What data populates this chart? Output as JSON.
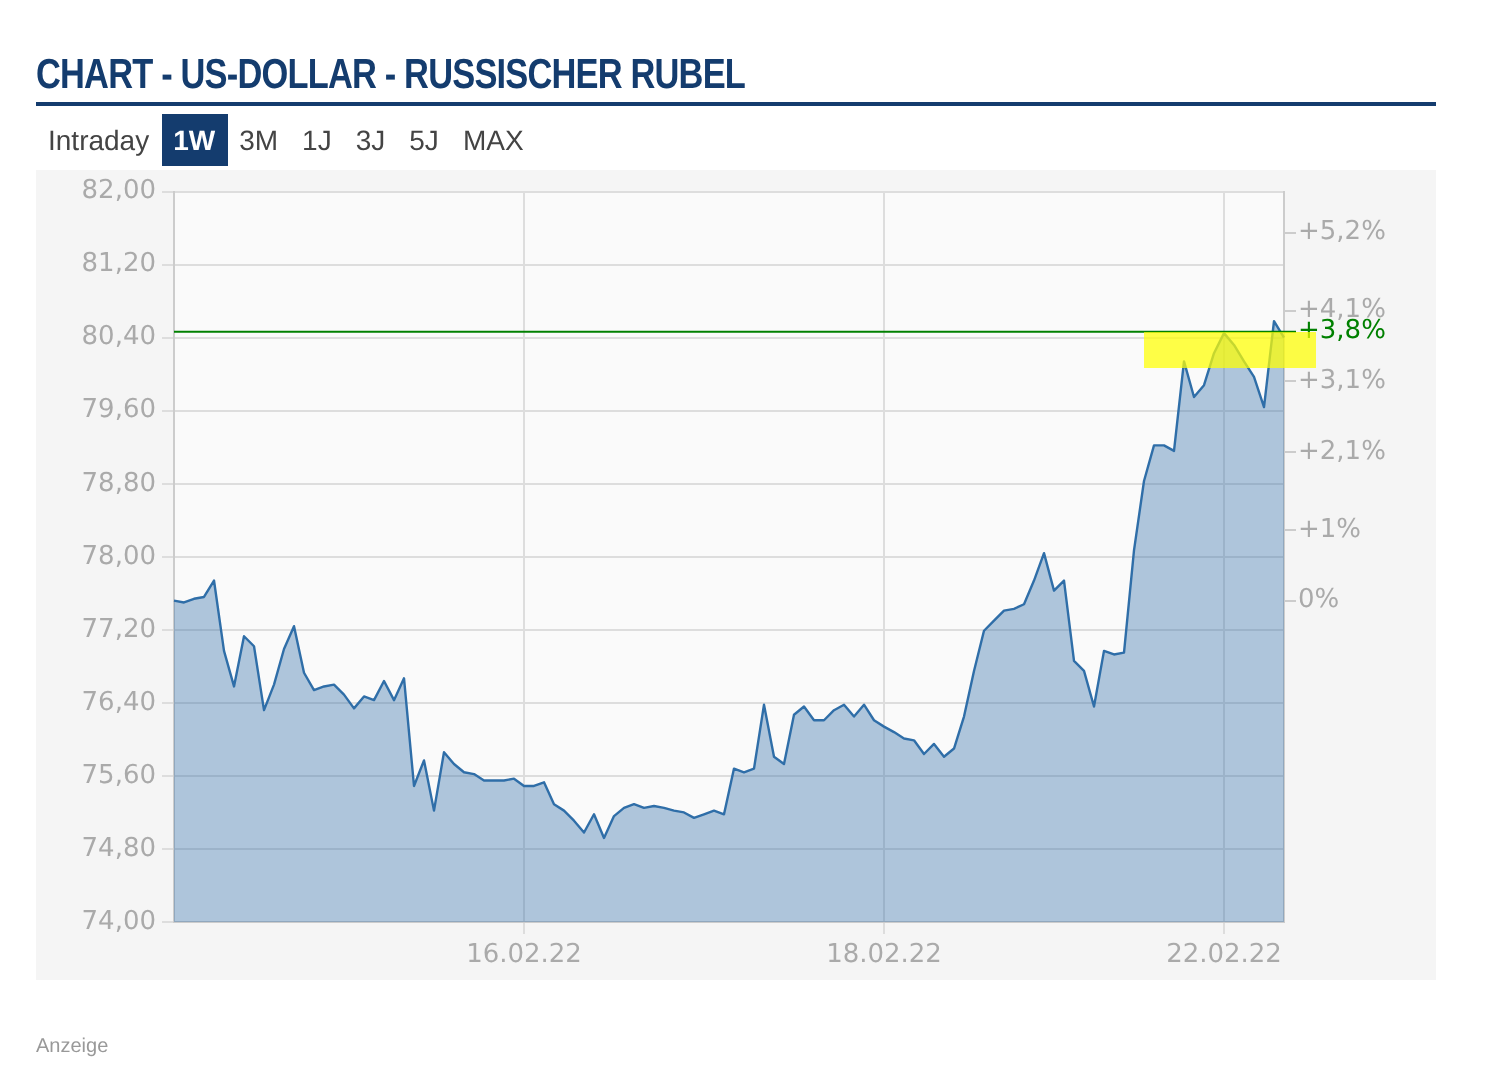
{
  "chart_data": {
    "type": "area",
    "title": "CHART - US-DOLLAR - RUSSISCHER RUBEL",
    "categories": [
      null,
      null,
      null,
      null,
      null,
      null,
      null,
      null,
      null,
      null,
      null,
      null,
      null,
      null,
      null,
      null,
      null,
      null,
      null,
      null,
      null,
      null,
      null,
      null,
      null,
      null,
      null,
      null,
      null,
      null,
      null,
      null,
      null,
      null,
      null,
      "16.02.22",
      null,
      null,
      null,
      null,
      null,
      null,
      null,
      null,
      null,
      null,
      null,
      null,
      null,
      null,
      null,
      null,
      null,
      null,
      null,
      null,
      null,
      null,
      null,
      null,
      null,
      null,
      null,
      null,
      null,
      null,
      null,
      null,
      null,
      null,
      null,
      "18.02.22",
      null,
      null,
      null,
      null,
      null,
      null,
      null,
      null,
      null,
      null,
      null,
      null,
      null,
      null,
      null,
      null,
      null,
      null,
      null,
      null,
      null,
      null,
      null,
      null,
      null,
      null,
      null,
      null,
      null,
      null,
      null,
      null,
      null,
      "22.02.22",
      null,
      null,
      null,
      null,
      null,
      null
    ],
    "series": [
      {
        "color": "#2f6ea8",
        "values": [
          77.52,
          77.5,
          77.54,
          77.56,
          77.74,
          76.97,
          76.58,
          77.13,
          77.02,
          76.32,
          76.6,
          76.99,
          77.24,
          76.73,
          76.54,
          76.58,
          76.6,
          76.49,
          76.34,
          76.47,
          76.43,
          76.64,
          76.43,
          76.67,
          75.49,
          75.77,
          75.22,
          75.86,
          75.73,
          75.64,
          75.62,
          75.55,
          75.55,
          75.55,
          75.57,
          75.49,
          75.49,
          75.53,
          75.29,
          75.22,
          75.11,
          74.98,
          75.18,
          74.92,
          75.16,
          75.25,
          75.29,
          75.25,
          75.27,
          75.25,
          75.22,
          75.2,
          75.14,
          75.18,
          75.22,
          75.18,
          75.68,
          75.64,
          75.68,
          76.38,
          75.81,
          75.73,
          76.27,
          76.36,
          76.21,
          76.21,
          76.32,
          76.38,
          76.25,
          76.38,
          76.21,
          76.14,
          76.08,
          76.01,
          75.99,
          75.84,
          75.95,
          75.81,
          75.9,
          76.25,
          76.75,
          77.19,
          77.3,
          77.41,
          77.43,
          77.48,
          77.74,
          78.04,
          77.63,
          77.74,
          76.86,
          76.75,
          76.36,
          76.97,
          76.93,
          76.95,
          78.07,
          78.83,
          79.22,
          79.22,
          79.16,
          80.14,
          79.75,
          79.88,
          80.23,
          80.45,
          80.32,
          80.14,
          79.97,
          79.64,
          80.58,
          80.4
        ]
      }
    ],
    "ylim": [
      74,
      82
    ],
    "yticks": [
      {
        "value": 74,
        "label": "74,00"
      },
      {
        "value": 74.8,
        "label": "74,80"
      },
      {
        "value": 75.6,
        "label": "75,60"
      },
      {
        "value": 76.4,
        "label": "76,40"
      },
      {
        "value": 77.2,
        "label": "77,20"
      },
      {
        "value": 78,
        "label": "78,00"
      },
      {
        "value": 78.8,
        "label": "78,80"
      },
      {
        "value": 79.6,
        "label": "79,60"
      },
      {
        "value": 80.4,
        "label": "80,40"
      },
      {
        "value": 81.2,
        "label": "81,20"
      },
      {
        "value": 82,
        "label": "82,00"
      }
    ],
    "y2lim": [
      -4.54,
      5.78
    ],
    "y2ticks": [
      {
        "value": 0,
        "label": "0%"
      },
      {
        "value": 1,
        "label": "+1%"
      },
      {
        "value": 2.1,
        "label": "+2,1%"
      },
      {
        "value": 3.1,
        "label": "+3,1%"
      },
      {
        "value": 4.1,
        "label": "+4,1%"
      },
      {
        "value": 5.2,
        "label": "+5,2%"
      }
    ],
    "ref_lines": [
      {
        "axis": "y2",
        "value": 3.8,
        "label": "+3,8%",
        "color": "#008000"
      }
    ],
    "grid": true,
    "annotations": [
      "Intraday",
      "1W",
      "3M",
      "1J",
      "3J",
      "5J",
      "MAX",
      "Anzeige"
    ]
  }
}
